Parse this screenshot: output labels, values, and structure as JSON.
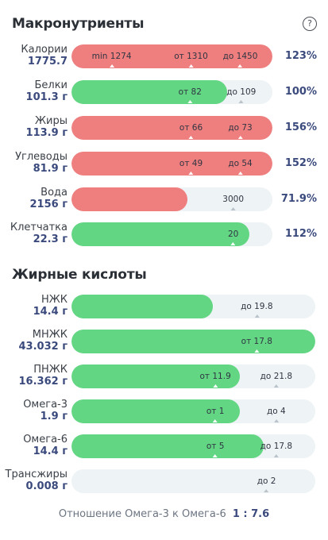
{
  "macros": {
    "title": "Макронутриенты",
    "help_icon": "?",
    "rows": [
      {
        "name": "Калории",
        "value": "1775.7",
        "percent": "123%",
        "fill_ratio": 1.0,
        "color": "red",
        "markers": [
          {
            "label": "min 1274",
            "pos": 0.2
          },
          {
            "label": "от 1310",
            "pos": 0.595
          },
          {
            "label": "до 1450",
            "pos": 0.84
          }
        ]
      },
      {
        "name": "Белки",
        "value": "101.3 г",
        "percent": "100%",
        "fill_ratio": 0.773,
        "color": "green",
        "markers": [
          {
            "label": "от 82",
            "pos": 0.59
          },
          {
            "label": "до 109",
            "pos": 0.845
          }
        ]
      },
      {
        "name": "Жиры",
        "value": "113.9 г",
        "percent": "156%",
        "fill_ratio": 1.0,
        "color": "red",
        "markers": [
          {
            "label": "от 66",
            "pos": 0.595
          },
          {
            "label": "до 73",
            "pos": 0.84
          }
        ]
      },
      {
        "name": "Углеводы",
        "value": "81.9 г",
        "percent": "152%",
        "fill_ratio": 1.0,
        "color": "red",
        "markers": [
          {
            "label": "от 49",
            "pos": 0.595
          },
          {
            "label": "до 54",
            "pos": 0.84
          }
        ]
      },
      {
        "name": "Вода",
        "value": "2156 г",
        "percent": "71.9%",
        "fill_ratio": 0.577,
        "color": "red",
        "markers": [
          {
            "label": "3000",
            "pos": 0.805
          }
        ]
      },
      {
        "name": "Клетчатка",
        "value": "22.3 г",
        "percent": "112%",
        "fill_ratio": 0.887,
        "color": "green",
        "markers": [
          {
            "label": "20",
            "pos": 0.805
          }
        ]
      }
    ]
  },
  "fatty_acids": {
    "title": "Жирные кислоты",
    "rows": [
      {
        "name": "НЖК",
        "value": "14.4 г",
        "fill_ratio": 0.58,
        "color": "green",
        "markers": [
          {
            "label": "до 19.8",
            "pos": 0.76
          }
        ]
      },
      {
        "name": "МНЖК",
        "value": "43.032 г",
        "fill_ratio": 1.0,
        "color": "green",
        "markers": [
          {
            "label": "от 17.8",
            "pos": 0.76
          }
        ]
      },
      {
        "name": "ПНЖК",
        "value": "16.362 г",
        "fill_ratio": 0.69,
        "color": "green",
        "markers": [
          {
            "label": "от 11.9",
            "pos": 0.59
          },
          {
            "label": "до 21.8",
            "pos": 0.84
          }
        ]
      },
      {
        "name": "Омега-3",
        "value": "1.9 г",
        "fill_ratio": 0.69,
        "color": "green",
        "markers": [
          {
            "label": "от 1",
            "pos": 0.59
          },
          {
            "label": "до 4",
            "pos": 0.84
          }
        ]
      },
      {
        "name": "Омега-6",
        "value": "14.4 г",
        "fill_ratio": 0.787,
        "color": "green",
        "markers": [
          {
            "label": "от 5",
            "pos": 0.59
          },
          {
            "label": "до 17.8",
            "pos": 0.84
          }
        ]
      },
      {
        "name": "Трансжиры",
        "value": "0.008 г",
        "fill_ratio": 0.0,
        "color": "green",
        "markers": [
          {
            "label": "до 2",
            "pos": 0.8
          }
        ]
      }
    ]
  },
  "ratio": {
    "label": "Отношение Омега-3 к Омега-6",
    "value": "1 : 7.6"
  }
}
